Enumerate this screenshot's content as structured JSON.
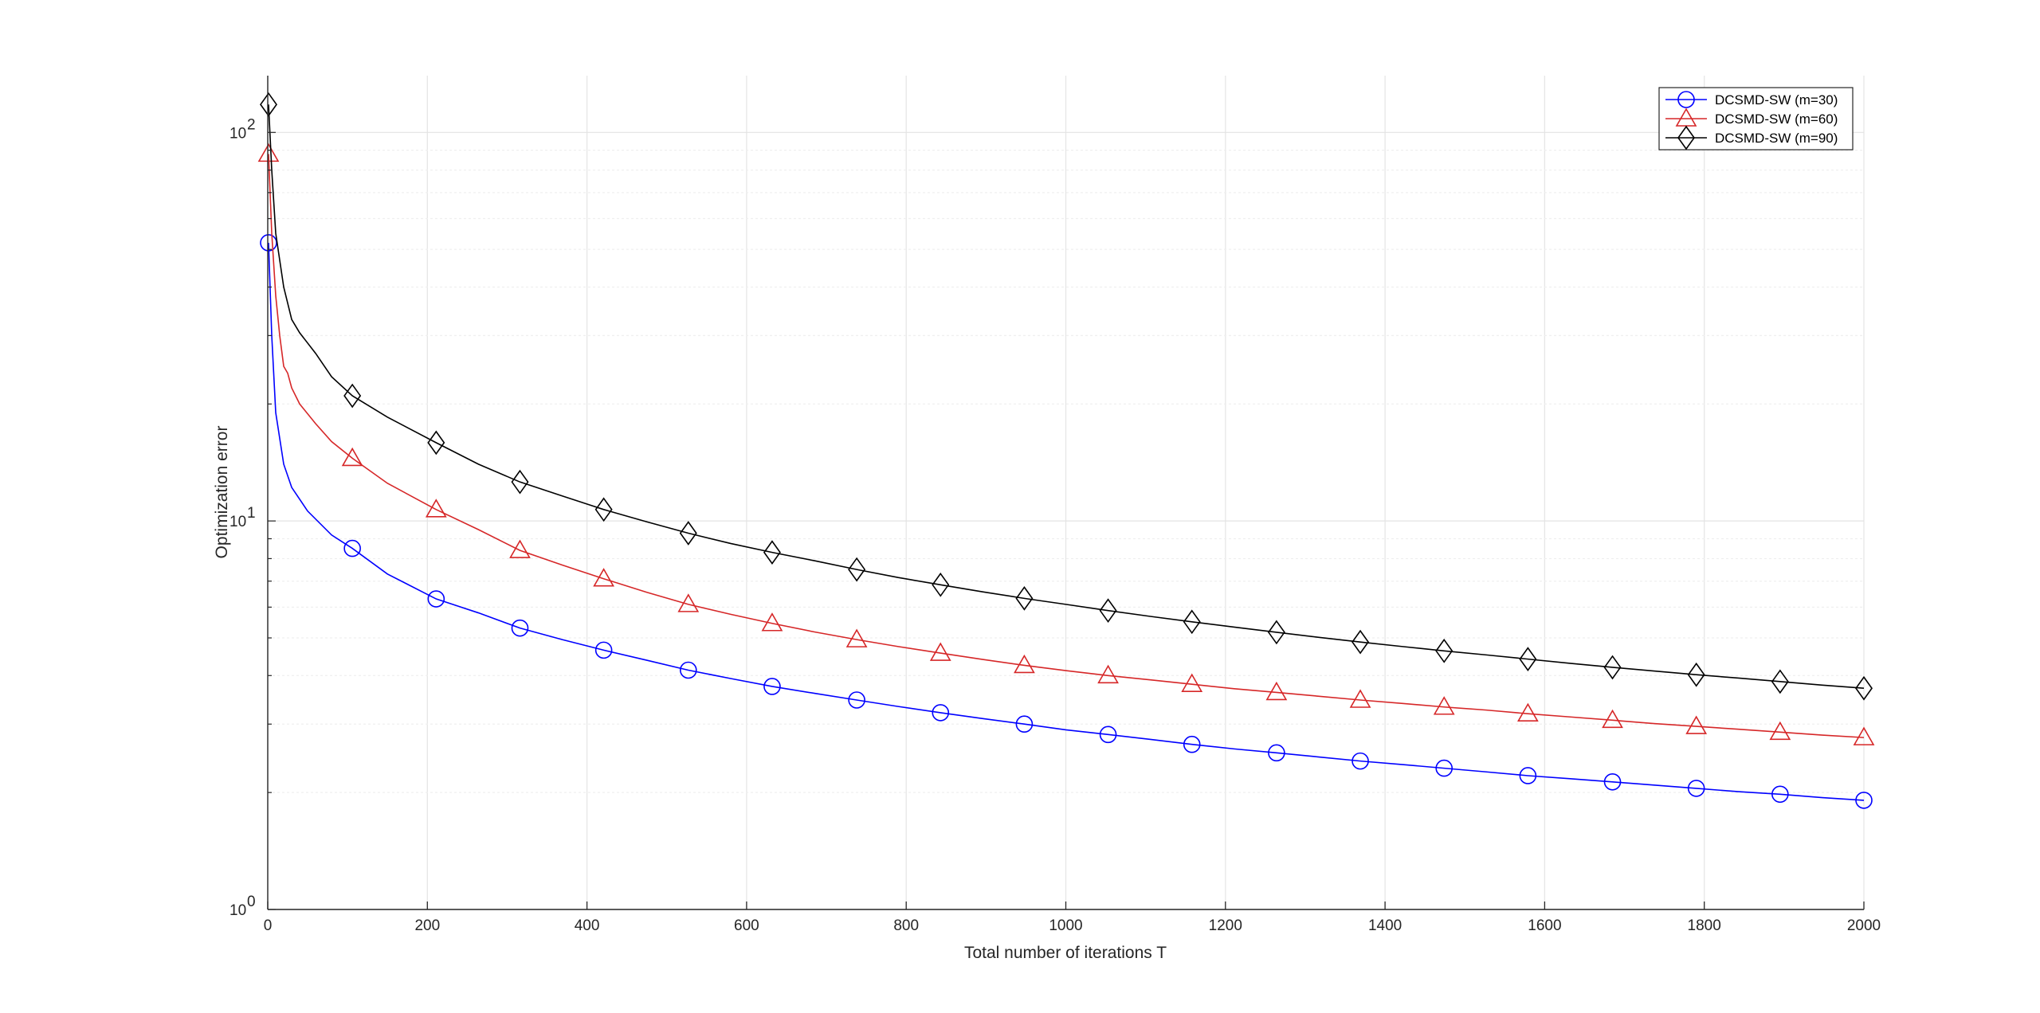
{
  "chart_data": {
    "type": "line",
    "title": "",
    "xlabel": "Total number of iterations T",
    "ylabel": "Optimization error",
    "xlim": [
      0,
      2000
    ],
    "ylim": [
      1,
      100
    ],
    "yscale": "log",
    "grid": true,
    "legend_position": "top-right",
    "x_ticks": [
      "0",
      "200",
      "400",
      "600",
      "800",
      "1000",
      "1200",
      "1400",
      "1600",
      "1800",
      "2000"
    ],
    "y_ticks": [
      {
        "base": "10",
        "exp": "0"
      },
      {
        "base": "10",
        "exp": "1"
      },
      {
        "base": "10",
        "exp": "2"
      }
    ],
    "series": [
      {
        "name": "DCSMD-SW (m=30)",
        "color": "#0000ff",
        "marker": "circle",
        "points": [
          [
            1,
            52
          ],
          [
            5,
            30
          ],
          [
            10,
            19
          ],
          [
            20,
            14
          ],
          [
            30,
            12.2
          ],
          [
            50,
            10.6
          ],
          [
            80,
            9.2
          ],
          [
            106,
            8.5
          ],
          [
            150,
            7.3
          ],
          [
            211,
            6.3
          ],
          [
            264,
            5.8
          ],
          [
            316,
            5.3
          ],
          [
            369,
            4.95
          ],
          [
            421,
            4.65
          ],
          [
            475,
            4.38
          ],
          [
            527,
            4.13
          ],
          [
            580,
            3.93
          ],
          [
            632,
            3.75
          ],
          [
            685,
            3.6
          ],
          [
            738,
            3.46
          ],
          [
            790,
            3.33
          ],
          [
            843,
            3.21
          ],
          [
            896,
            3.1
          ],
          [
            948,
            3.0
          ],
          [
            1000,
            2.9
          ],
          [
            1053,
            2.82
          ],
          [
            1106,
            2.74
          ],
          [
            1158,
            2.66
          ],
          [
            1211,
            2.59
          ],
          [
            1264,
            2.53
          ],
          [
            1316,
            2.47
          ],
          [
            1369,
            2.41
          ],
          [
            1422,
            2.36
          ],
          [
            1474,
            2.31
          ],
          [
            1527,
            2.26
          ],
          [
            1579,
            2.21
          ],
          [
            1632,
            2.17
          ],
          [
            1685,
            2.13
          ],
          [
            1737,
            2.09
          ],
          [
            1790,
            2.05
          ],
          [
            1843,
            2.01
          ],
          [
            1895,
            1.98
          ],
          [
            1948,
            1.94
          ],
          [
            2000,
            1.91
          ]
        ],
        "marker_x": [
          1,
          106,
          211,
          316,
          421,
          527,
          632,
          738,
          843,
          948,
          1053,
          1158,
          1264,
          1369,
          1474,
          1579,
          1685,
          1790,
          1895,
          2000
        ]
      },
      {
        "name": "DCSMD-SW (m=60)",
        "color": "#d62728",
        "marker": "triangle",
        "points": [
          [
            1,
            88
          ],
          [
            5,
            55
          ],
          [
            10,
            38
          ],
          [
            15,
            30
          ],
          [
            20,
            25
          ],
          [
            25,
            24
          ],
          [
            30,
            22
          ],
          [
            40,
            20
          ],
          [
            60,
            17.8
          ],
          [
            80,
            16
          ],
          [
            106,
            14.5
          ],
          [
            150,
            12.5
          ],
          [
            211,
            10.7
          ],
          [
            264,
            9.5
          ],
          [
            316,
            8.4
          ],
          [
            369,
            7.7
          ],
          [
            421,
            7.1
          ],
          [
            475,
            6.55
          ],
          [
            527,
            6.1
          ],
          [
            580,
            5.75
          ],
          [
            632,
            5.45
          ],
          [
            685,
            5.18
          ],
          [
            738,
            4.95
          ],
          [
            790,
            4.75
          ],
          [
            843,
            4.57
          ],
          [
            896,
            4.4
          ],
          [
            948,
            4.25
          ],
          [
            1000,
            4.12
          ],
          [
            1053,
            4.0
          ],
          [
            1106,
            3.9
          ],
          [
            1158,
            3.8
          ],
          [
            1211,
            3.7
          ],
          [
            1264,
            3.62
          ],
          [
            1316,
            3.54
          ],
          [
            1369,
            3.46
          ],
          [
            1422,
            3.39
          ],
          [
            1474,
            3.32
          ],
          [
            1527,
            3.26
          ],
          [
            1579,
            3.19
          ],
          [
            1632,
            3.13
          ],
          [
            1685,
            3.07
          ],
          [
            1737,
            3.01
          ],
          [
            1790,
            2.96
          ],
          [
            1843,
            2.91
          ],
          [
            1895,
            2.86
          ],
          [
            1948,
            2.81
          ],
          [
            2000,
            2.77
          ]
        ],
        "marker_x": [
          1,
          106,
          211,
          316,
          421,
          527,
          632,
          738,
          843,
          948,
          1053,
          1158,
          1264,
          1369,
          1474,
          1579,
          1685,
          1790,
          1895,
          2000
        ]
      },
      {
        "name": "DCSMD-SW (m=90)",
        "color": "#000000",
        "marker": "diamond",
        "points": [
          [
            1,
            118
          ],
          [
            5,
            80
          ],
          [
            10,
            55
          ],
          [
            20,
            40
          ],
          [
            30,
            33
          ],
          [
            40,
            30.5
          ],
          [
            60,
            27
          ],
          [
            80,
            23.5
          ],
          [
            106,
            21
          ],
          [
            150,
            18.5
          ],
          [
            211,
            15.9
          ],
          [
            264,
            14
          ],
          [
            316,
            12.6
          ],
          [
            369,
            11.6
          ],
          [
            421,
            10.7
          ],
          [
            475,
            9.95
          ],
          [
            527,
            9.3
          ],
          [
            580,
            8.75
          ],
          [
            632,
            8.3
          ],
          [
            685,
            7.9
          ],
          [
            738,
            7.5
          ],
          [
            790,
            7.15
          ],
          [
            843,
            6.85
          ],
          [
            896,
            6.57
          ],
          [
            948,
            6.32
          ],
          [
            1000,
            6.1
          ],
          [
            1053,
            5.88
          ],
          [
            1106,
            5.68
          ],
          [
            1158,
            5.5
          ],
          [
            1211,
            5.33
          ],
          [
            1264,
            5.17
          ],
          [
            1316,
            5.02
          ],
          [
            1369,
            4.88
          ],
          [
            1422,
            4.75
          ],
          [
            1474,
            4.63
          ],
          [
            1527,
            4.52
          ],
          [
            1579,
            4.41
          ],
          [
            1632,
            4.3
          ],
          [
            1685,
            4.2
          ],
          [
            1737,
            4.11
          ],
          [
            1790,
            4.02
          ],
          [
            1843,
            3.94
          ],
          [
            1895,
            3.86
          ],
          [
            1948,
            3.78
          ],
          [
            2000,
            3.71
          ]
        ],
        "marker_x": [
          1,
          106,
          211,
          316,
          421,
          527,
          632,
          738,
          843,
          948,
          1053,
          1158,
          1264,
          1369,
          1474,
          1579,
          1685,
          1790,
          1895,
          2000
        ]
      }
    ]
  }
}
